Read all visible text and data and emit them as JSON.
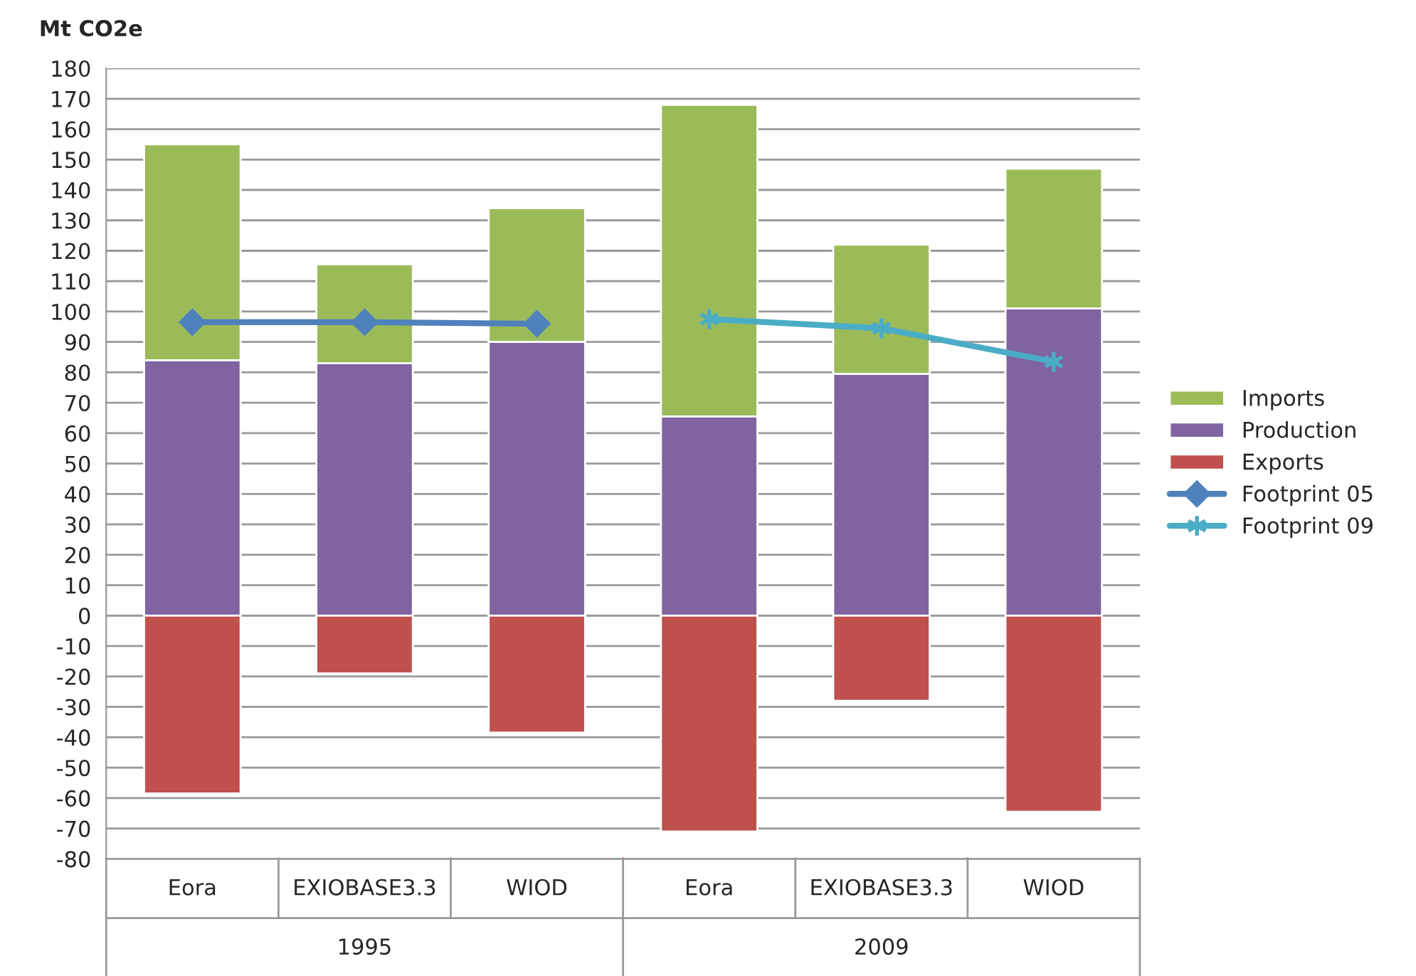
{
  "chart_data": {
    "type": "bar",
    "stacked": true,
    "ylabel": "Mt CO2e",
    "categories": [
      "Eora",
      "EXIOBASE3.3",
      "WIOD",
      "Eora",
      "EXIOBASE3.3",
      "WIOD"
    ],
    "annotations": [
      "1995",
      "2009"
    ],
    "series": [
      {
        "name": "Production",
        "color": "#8064a2",
        "values": [
          84,
          83,
          90,
          65.5,
          79.5,
          101
        ]
      },
      {
        "name": "Imports",
        "color": "#9bbb59",
        "values": [
          71,
          32.5,
          44,
          102.5,
          42.5,
          46
        ]
      },
      {
        "name": "Exports",
        "color": "#c0504d",
        "values": [
          -58.5,
          -19,
          -38.5,
          -71,
          -28,
          -64.5
        ]
      },
      {
        "name": "Footprint 05",
        "type": "line",
        "marker": "diamond",
        "color": "#4f81bd",
        "values": [
          96.5,
          96.5,
          96,
          null,
          null,
          null
        ]
      },
      {
        "name": "Footprint 09",
        "type": "line",
        "marker": "cross",
        "color": "#4bacc6",
        "values": [
          null,
          null,
          null,
          97.5,
          94.5,
          83.5
        ]
      }
    ],
    "ylim": [
      -80,
      180
    ],
    "yticks": [
      -80,
      -70,
      -60,
      -50,
      -40,
      -30,
      -20,
      -10,
      0,
      10,
      20,
      30,
      40,
      50,
      60,
      70,
      80,
      90,
      100,
      110,
      120,
      130,
      140,
      150,
      160,
      170,
      180
    ],
    "grid": "y",
    "legend": "right"
  }
}
